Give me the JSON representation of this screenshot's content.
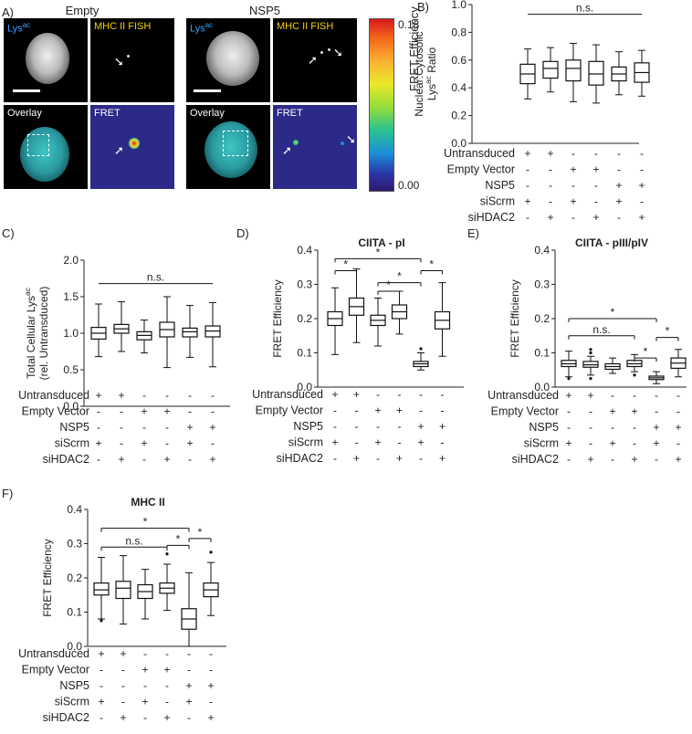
{
  "panel_a": {
    "letter": "A)",
    "conditions": [
      {
        "title": "Empty",
        "tile_labels": {
          "lys_main": "Lys",
          "lys_sup": "ac",
          "fish": "MHC II FISH",
          "overlay": "Overlay",
          "fret": "FRET"
        }
      },
      {
        "title": "NSP5",
        "tile_labels": {
          "lys_main": "Lys",
          "lys_sup": "ac",
          "fish": "MHC II FISH",
          "overlay": "Overlay",
          "fret": "FRET"
        }
      }
    ],
    "colorbar": {
      "max": "0.18",
      "min": "0.00",
      "label": "FRET Efficiency"
    }
  },
  "conditions_table": {
    "rows": [
      {
        "label": "Untransduced",
        "signs": [
          "+",
          "+",
          "-",
          "-",
          "-",
          "-"
        ]
      },
      {
        "label": "Empty Vector",
        "signs": [
          "-",
          "-",
          "+",
          "+",
          "-",
          "-"
        ]
      },
      {
        "label": "NSP5",
        "signs": [
          "-",
          "-",
          "-",
          "-",
          "+",
          "+"
        ]
      },
      {
        "label": "siScrm",
        "signs": [
          "+",
          "-",
          "+",
          "-",
          "+",
          "-"
        ]
      },
      {
        "label": "siHDAC2",
        "signs": [
          "-",
          "+",
          "-",
          "+",
          "-",
          "+"
        ]
      }
    ]
  },
  "chart_data": [
    {
      "id": "B",
      "letter": "B)",
      "type": "box",
      "title": "",
      "ylabel_lines": [
        "Nuclear:Cytosolic",
        "Lys^ac Ratio"
      ],
      "ylim": [
        0,
        1.0
      ],
      "yticks": [
        "0.0",
        "0.2",
        "0.4",
        "0.6",
        "0.8",
        "1.0"
      ],
      "boxes": [
        {
          "min": 0.32,
          "q1": 0.43,
          "median": 0.5,
          "q3": 0.57,
          "max": 0.68
        },
        {
          "min": 0.37,
          "q1": 0.47,
          "median": 0.54,
          "q3": 0.59,
          "max": 0.69
        },
        {
          "min": 0.3,
          "q1": 0.45,
          "median": 0.54,
          "q3": 0.6,
          "max": 0.72
        },
        {
          "min": 0.29,
          "q1": 0.42,
          "median": 0.5,
          "q3": 0.59,
          "max": 0.71
        },
        {
          "min": 0.35,
          "q1": 0.45,
          "median": 0.5,
          "q3": 0.55,
          "max": 0.66
        },
        {
          "min": 0.34,
          "q1": 0.44,
          "median": 0.51,
          "q3": 0.58,
          "max": 0.67
        }
      ],
      "brackets": [
        {
          "from": 0,
          "to": 5,
          "y": 0.93,
          "label": "n.s."
        }
      ]
    },
    {
      "id": "C",
      "letter": "C)",
      "type": "box",
      "title": "",
      "ylabel_lines": [
        "Total Cellular Lys^ac",
        "(rel. Untransduced)"
      ],
      "ylim": [
        0,
        2.0
      ],
      "yticks": [
        "0.0",
        "0.5",
        "1.0",
        "1.5",
        "2.0"
      ],
      "boxes": [
        {
          "min": 0.68,
          "q1": 0.92,
          "median": 1.0,
          "q3": 1.08,
          "max": 1.4
        },
        {
          "min": 0.75,
          "q1": 1.0,
          "median": 1.06,
          "q3": 1.12,
          "max": 1.43
        },
        {
          "min": 0.73,
          "q1": 0.91,
          "median": 0.97,
          "q3": 1.02,
          "max": 1.18
        },
        {
          "min": 0.53,
          "q1": 0.95,
          "median": 1.05,
          "q3": 1.15,
          "max": 1.5
        },
        {
          "min": 0.67,
          "q1": 0.95,
          "median": 1.02,
          "q3": 1.07,
          "max": 1.38
        },
        {
          "min": 0.54,
          "q1": 0.95,
          "median": 1.03,
          "q3": 1.1,
          "max": 1.42
        }
      ],
      "brackets": [
        {
          "from": 0,
          "to": 5,
          "y": 1.68,
          "label": "n.s."
        }
      ]
    },
    {
      "id": "D",
      "letter": "D)",
      "type": "box",
      "title": "CIITA - pI",
      "ylabel_lines": [
        "FRET Efficiency"
      ],
      "ylim": [
        0,
        0.4
      ],
      "yticks": [
        "0.0",
        "0.1",
        "0.2",
        "0.3",
        "0.4"
      ],
      "boxes": [
        {
          "min": 0.095,
          "q1": 0.18,
          "median": 0.2,
          "q3": 0.22,
          "max": 0.29
        },
        {
          "min": 0.13,
          "q1": 0.21,
          "median": 0.235,
          "q3": 0.26,
          "max": 0.345
        },
        {
          "min": 0.12,
          "q1": 0.18,
          "median": 0.195,
          "q3": 0.21,
          "max": 0.26
        },
        {
          "min": 0.155,
          "q1": 0.2,
          "median": 0.22,
          "q3": 0.24,
          "max": 0.28
        },
        {
          "min": 0.05,
          "q1": 0.06,
          "median": 0.068,
          "q3": 0.075,
          "max": 0.1,
          "outliers": [
            0.112
          ]
        },
        {
          "min": 0.09,
          "q1": 0.17,
          "median": 0.195,
          "q3": 0.22,
          "max": 0.305
        }
      ],
      "brackets": [
        {
          "from": 0,
          "to": 4,
          "y": 0.375,
          "label": "*"
        },
        {
          "from": 0,
          "to": 1,
          "y": 0.34,
          "label": "*"
        },
        {
          "from": 2,
          "to": 4,
          "y": 0.305,
          "label": "*"
        },
        {
          "from": 2,
          "to": 3,
          "y": 0.28,
          "label": "*"
        },
        {
          "from": 4,
          "to": 5,
          "y": 0.34,
          "label": "*"
        }
      ]
    },
    {
      "id": "E",
      "letter": "E)",
      "type": "box",
      "title": "CIITA - pIII/pIV",
      "ylabel_lines": [
        "FRET Efficiency"
      ],
      "ylim": [
        0,
        0.4
      ],
      "yticks": [
        "0.0",
        "0.1",
        "0.2",
        "0.3",
        "0.4"
      ],
      "boxes": [
        {
          "min": 0.03,
          "q1": 0.06,
          "median": 0.068,
          "q3": 0.078,
          "max": 0.105,
          "outliers": [
            0.025
          ]
        },
        {
          "min": 0.035,
          "q1": 0.058,
          "median": 0.065,
          "q3": 0.075,
          "max": 0.09,
          "outliers": [
            0.025,
            0.1,
            0.11
          ]
        },
        {
          "min": 0.04,
          "q1": 0.052,
          "median": 0.06,
          "q3": 0.068,
          "max": 0.085
        },
        {
          "min": 0.045,
          "q1": 0.06,
          "median": 0.068,
          "q3": 0.078,
          "max": 0.095,
          "outliers": [
            0.035
          ]
        },
        {
          "min": 0.01,
          "q1": 0.022,
          "median": 0.027,
          "q3": 0.032,
          "max": 0.045
        },
        {
          "min": 0.03,
          "q1": 0.055,
          "median": 0.07,
          "q3": 0.085,
          "max": 0.11
        }
      ],
      "brackets": [
        {
          "from": 0,
          "to": 4,
          "y": 0.2,
          "label": "*"
        },
        {
          "from": 0,
          "to": 3,
          "y": 0.15,
          "label": "n.s."
        },
        {
          "from": 3,
          "to": 4,
          "y": 0.085,
          "label": "*"
        },
        {
          "from": 4,
          "to": 5,
          "y": 0.145,
          "label": "*"
        }
      ]
    },
    {
      "id": "F",
      "letter": "F)",
      "type": "box",
      "title": "MHC II",
      "ylabel_lines": [
        "FRET Efficiency"
      ],
      "ylim": [
        0,
        0.4
      ],
      "yticks": [
        "0.0",
        "0.1",
        "0.2",
        "0.3",
        "0.4"
      ],
      "boxes": [
        {
          "min": 0.08,
          "q1": 0.15,
          "median": 0.165,
          "q3": 0.185,
          "max": 0.26,
          "outliers": [
            0.075
          ]
        },
        {
          "min": 0.065,
          "q1": 0.14,
          "median": 0.17,
          "q3": 0.19,
          "max": 0.265
        },
        {
          "min": 0.08,
          "q1": 0.14,
          "median": 0.16,
          "q3": 0.18,
          "max": 0.225
        },
        {
          "min": 0.105,
          "q1": 0.155,
          "median": 0.17,
          "q3": 0.185,
          "max": 0.24,
          "outliers": [
            0.27
          ]
        },
        {
          "min": 0.0,
          "q1": 0.05,
          "median": 0.08,
          "q3": 0.11,
          "max": 0.215
        },
        {
          "min": 0.09,
          "q1": 0.145,
          "median": 0.165,
          "q3": 0.185,
          "max": 0.245,
          "outliers": [
            0.275
          ]
        }
      ],
      "brackets": [
        {
          "from": 0,
          "to": 4,
          "y": 0.345,
          "label": "*"
        },
        {
          "from": 0,
          "to": 3,
          "y": 0.29,
          "label": "n.s."
        },
        {
          "from": 3,
          "to": 4,
          "y": 0.295,
          "label": "*"
        },
        {
          "from": 4,
          "to": 5,
          "y": 0.315,
          "label": "*"
        }
      ]
    }
  ]
}
